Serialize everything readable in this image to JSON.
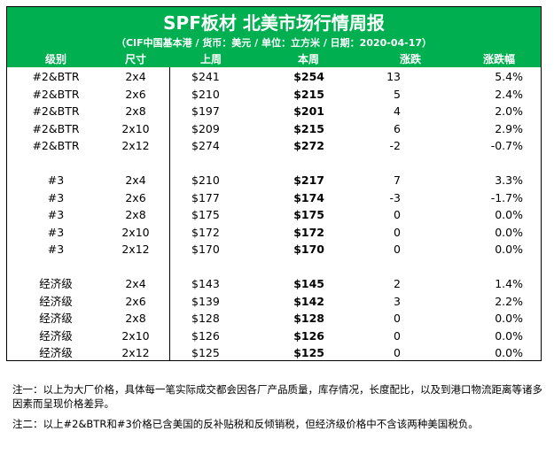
{
  "title": "SPF板材 北美市场行情周报",
  "subtitle": "（CIF中国基本港 / 货币：美元 / 单位：立方米 / 日期：2020-04-17）",
  "columns": [
    "级别",
    "尺寸",
    "上周",
    "本周",
    "涨跌",
    "涨跌幅"
  ],
  "groups": [
    {
      "rows": [
        [
          "#2&BTR",
          "2x4",
          "$241",
          "$254",
          "13",
          "5.4%"
        ],
        [
          "#2&BTR",
          "2x6",
          "$210",
          "$215",
          "5",
          "2.4%"
        ],
        [
          "#2&BTR",
          "2x8",
          "$197",
          "$201",
          "4",
          "2.0%"
        ],
        [
          "#2&BTR",
          "2x10",
          "$209",
          "$215",
          "6",
          "2.9%"
        ],
        [
          "#2&BTR",
          "2x12",
          "$274",
          "$272",
          "-2",
          "-0.7%"
        ]
      ]
    },
    {
      "rows": [
        [
          "#3",
          "2x4",
          "$210",
          "$217",
          "7",
          "3.3%"
        ],
        [
          "#3",
          "2x6",
          "$177",
          "$174",
          "-3",
          "-1.7%"
        ],
        [
          "#3",
          "2x8",
          "$175",
          "$175",
          "0",
          "0.0%"
        ],
        [
          "#3",
          "2x10",
          "$172",
          "$172",
          "0",
          "0.0%"
        ],
        [
          "#3",
          "2x12",
          "$170",
          "$170",
          "0",
          "0.0%"
        ]
      ]
    },
    {
      "rows": [
        [
          "经济级",
          "2x4",
          "$143",
          "$145",
          "2",
          "1.4%"
        ],
        [
          "经济级",
          "2x6",
          "$139",
          "$142",
          "3",
          "2.2%"
        ],
        [
          "经济级",
          "2x8",
          "$128",
          "$128",
          "0",
          "0.0%"
        ],
        [
          "经济级",
          "2x10",
          "$126",
          "$126",
          "0",
          "0.0%"
        ],
        [
          "经济级",
          "2x12",
          "$125",
          "$125",
          "0",
          "0.0%"
        ]
      ]
    }
  ],
  "notes": [
    "注一：以上为大厂价格，具体每一笔实际成交都会因各厂产品质量，库存情况，长度配比，以及到港口物流距离等诸多因素而呈现价格差异。",
    "注二：以上#2&BTR和#3价格已含美国的反补贴税和反倾销税，但经济级价格中不含该两种美国税负。"
  ],
  "colors": {
    "header_bg": "#00b050",
    "header_text": "#ffffff"
  }
}
